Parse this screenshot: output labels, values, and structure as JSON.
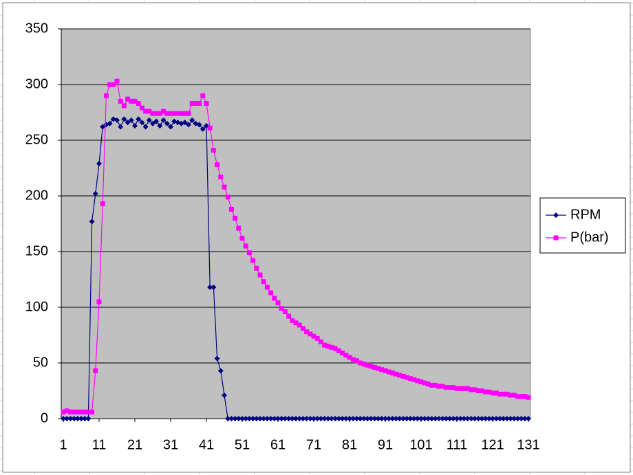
{
  "chart_data": {
    "type": "line",
    "x": [
      1,
      2,
      3,
      4,
      5,
      6,
      7,
      8,
      9,
      10,
      11,
      12,
      13,
      14,
      15,
      16,
      17,
      18,
      19,
      20,
      21,
      22,
      23,
      24,
      25,
      26,
      27,
      28,
      29,
      30,
      31,
      32,
      33,
      34,
      35,
      36,
      37,
      38,
      39,
      40,
      41,
      42,
      43,
      44,
      45,
      46,
      47,
      48,
      49,
      50,
      51,
      52,
      53,
      54,
      55,
      56,
      57,
      58,
      59,
      60,
      61,
      62,
      63,
      64,
      65,
      66,
      67,
      68,
      69,
      70,
      71,
      72,
      73,
      74,
      75,
      76,
      77,
      78,
      79,
      80,
      81,
      82,
      83,
      84,
      85,
      86,
      87,
      88,
      89,
      90,
      91,
      92,
      93,
      94,
      95,
      96,
      97,
      98,
      99,
      100,
      101,
      102,
      103,
      104,
      105,
      106,
      107,
      108,
      109,
      110,
      111,
      112,
      113,
      114,
      115,
      116,
      117,
      118,
      119,
      120,
      121,
      122,
      123,
      124,
      125,
      126,
      127,
      128,
      129,
      130,
      131
    ],
    "series": [
      {
        "name": "RPM",
        "color": "#000080",
        "marker": "diamond",
        "values": [
          0,
          0,
          0,
          0,
          0,
          0,
          0,
          0,
          177,
          202,
          229,
          262,
          264,
          265,
          269,
          268,
          262,
          269,
          266,
          268,
          263,
          269,
          266,
          262,
          268,
          265,
          267,
          263,
          268,
          265,
          262,
          267,
          266,
          265,
          266,
          264,
          268,
          265,
          264,
          260,
          263,
          118,
          118,
          54,
          43,
          21,
          0,
          0,
          0,
          0,
          0,
          0,
          0,
          0,
          0,
          0,
          0,
          0,
          0,
          0,
          0,
          0,
          0,
          0,
          0,
          0,
          0,
          0,
          0,
          0,
          0,
          0,
          0,
          0,
          0,
          0,
          0,
          0,
          0,
          0,
          0,
          0,
          0,
          0,
          0,
          0,
          0,
          0,
          0,
          0,
          0,
          0,
          0,
          0,
          0,
          0,
          0,
          0,
          0,
          0,
          0,
          0,
          0,
          0,
          0,
          0,
          0,
          0,
          0,
          0,
          0,
          0,
          0,
          0,
          0,
          0,
          0,
          0,
          0,
          0,
          0,
          0,
          0,
          0,
          0,
          0,
          0,
          0,
          0,
          0,
          0
        ]
      },
      {
        "name": "P(bar)",
        "color": "#ff00ff",
        "marker": "square",
        "values": [
          6,
          7,
          6,
          6,
          6,
          6,
          6,
          6,
          6,
          43,
          105,
          193,
          290,
          300,
          300,
          303,
          285,
          281,
          287,
          285,
          285,
          283,
          279,
          276,
          276,
          274,
          274,
          274,
          276,
          274,
          274,
          274,
          274,
          274,
          274,
          274,
          283,
          283,
          283,
          290,
          283,
          261,
          241,
          228,
          217,
          208,
          199,
          188,
          180,
          171,
          162,
          155,
          149,
          142,
          135,
          129,
          123,
          118,
          113,
          108,
          104,
          99,
          96,
          92,
          88,
          86,
          84,
          81,
          78,
          76,
          74,
          72,
          69,
          66,
          65,
          64,
          63,
          61,
          59,
          57,
          55,
          53,
          52,
          50,
          49,
          48,
          47,
          46,
          45,
          44,
          43,
          42,
          41,
          40,
          39,
          38,
          37,
          36,
          35,
          34,
          33,
          32,
          31,
          30,
          30,
          29,
          29,
          28,
          28,
          28,
          27,
          27,
          27,
          27,
          26,
          26,
          25,
          25,
          24,
          24,
          23,
          23,
          22,
          22,
          22,
          21,
          21,
          20,
          20,
          20,
          19
        ]
      }
    ],
    "xlim": [
      1,
      131
    ],
    "xticks": [
      1,
      11,
      21,
      31,
      41,
      51,
      61,
      71,
      81,
      91,
      101,
      111,
      121,
      131
    ],
    "ylim": [
      0,
      350
    ],
    "yticks": [
      0,
      50,
      100,
      150,
      200,
      250,
      300,
      350
    ],
    "grid": true,
    "legend": "right"
  }
}
